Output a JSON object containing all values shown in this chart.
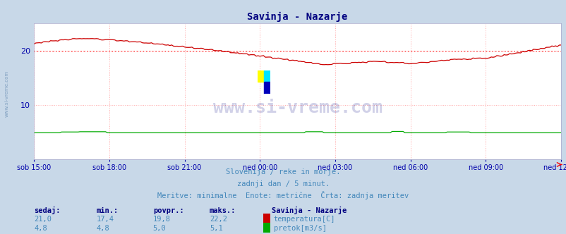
{
  "title": "Savinja - Nazarje",
  "title_color": "#000080",
  "bg_color": "#c8d8e8",
  "plot_bg_color": "#ffffff",
  "grid_color": "#ffaaaa",
  "grid_style": ":",
  "xlabel_ticks": [
    "sob 15:00",
    "sob 18:00",
    "sob 21:00",
    "ned 00:00",
    "ned 03:00",
    "ned 06:00",
    "ned 09:00",
    "ned 12:00"
  ],
  "n_points": 288,
  "temp_color": "#cc0000",
  "flow_color": "#00aa00",
  "avg_line_color": "#ff6666",
  "avg_temp": 19.8,
  "watermark_text": "www.si-vreme.com",
  "watermark_color": "#000080",
  "watermark_alpha": 0.18,
  "tick_color": "#0000aa",
  "subtitle1": "Slovenija / reke in morje.",
  "subtitle2": "zadnji dan / 5 minut.",
  "subtitle3": "Meritve: minimalne  Enote: metrične  Črta: zadnja meritev",
  "subtitle_color": "#4488bb",
  "legend_title": "Savinja - Nazarje",
  "legend_color": "#000080",
  "left_label": "www.si-vreme.com",
  "ylim": [
    0,
    25
  ],
  "yticks": [
    10,
    20
  ],
  "temp_vals": [
    "21,0",
    "17,4",
    "19,8",
    "22,2"
  ],
  "flow_vals": [
    "4,8",
    "4,8",
    "5,0",
    "5,1"
  ],
  "headers": [
    "sedaj:",
    "min.:",
    "povpr.:",
    "maks.:"
  ]
}
